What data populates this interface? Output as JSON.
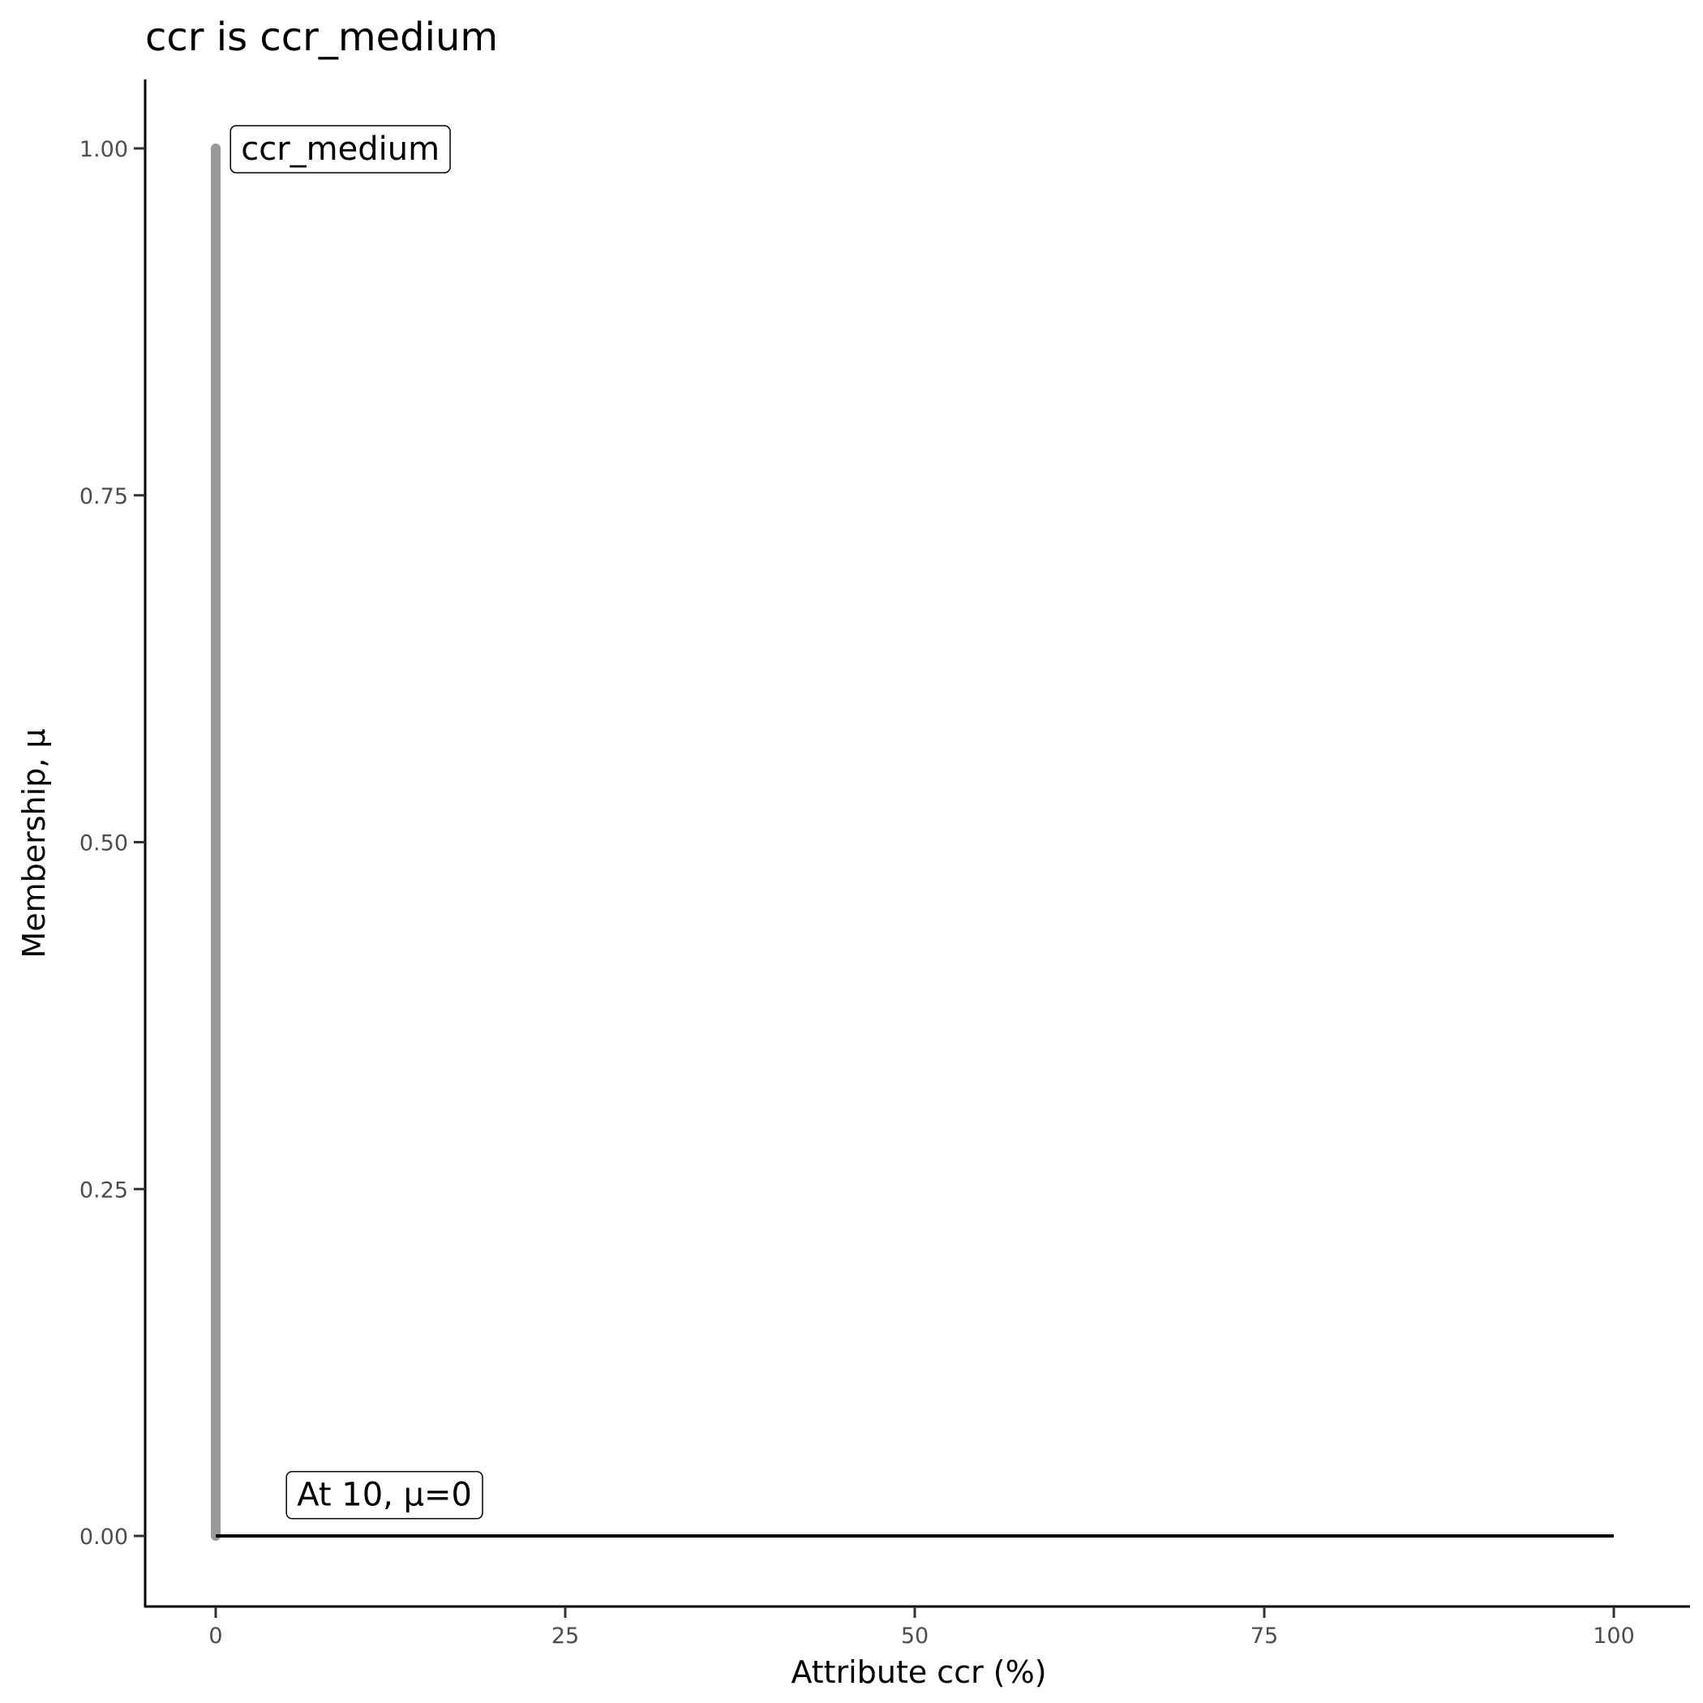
{
  "chart_data": {
    "type": "line",
    "title": "ccr is ccr_medium",
    "xlabel": "Attribute ccr (%)",
    "ylabel": "Membership, μ",
    "xlim": [
      -5,
      105
    ],
    "ylim": [
      -0.05,
      1.05
    ],
    "x_ticks": [
      "0",
      "25",
      "50",
      "75",
      "100"
    ],
    "x_tick_values": [
      0,
      25,
      50,
      75,
      100
    ],
    "y_ticks": [
      "0.00",
      "0.25",
      "0.50",
      "0.75",
      "1.00"
    ],
    "y_tick_values": [
      0,
      0.25,
      0.5,
      0.75,
      1
    ],
    "grid": false,
    "series": [
      {
        "color": "#999999",
        "points": [
          [
            0,
            0
          ],
          [
            0,
            1
          ]
        ]
      },
      {
        "color": "#000000",
        "points": [
          [
            0,
            0
          ],
          [
            100,
            0
          ]
        ]
      }
    ],
    "annotations": [
      {
        "text": "ccr_medium",
        "x": 1,
        "y": 1
      },
      {
        "text": "At 10, μ=0",
        "x": 5,
        "y": 0.03
      }
    ]
  }
}
